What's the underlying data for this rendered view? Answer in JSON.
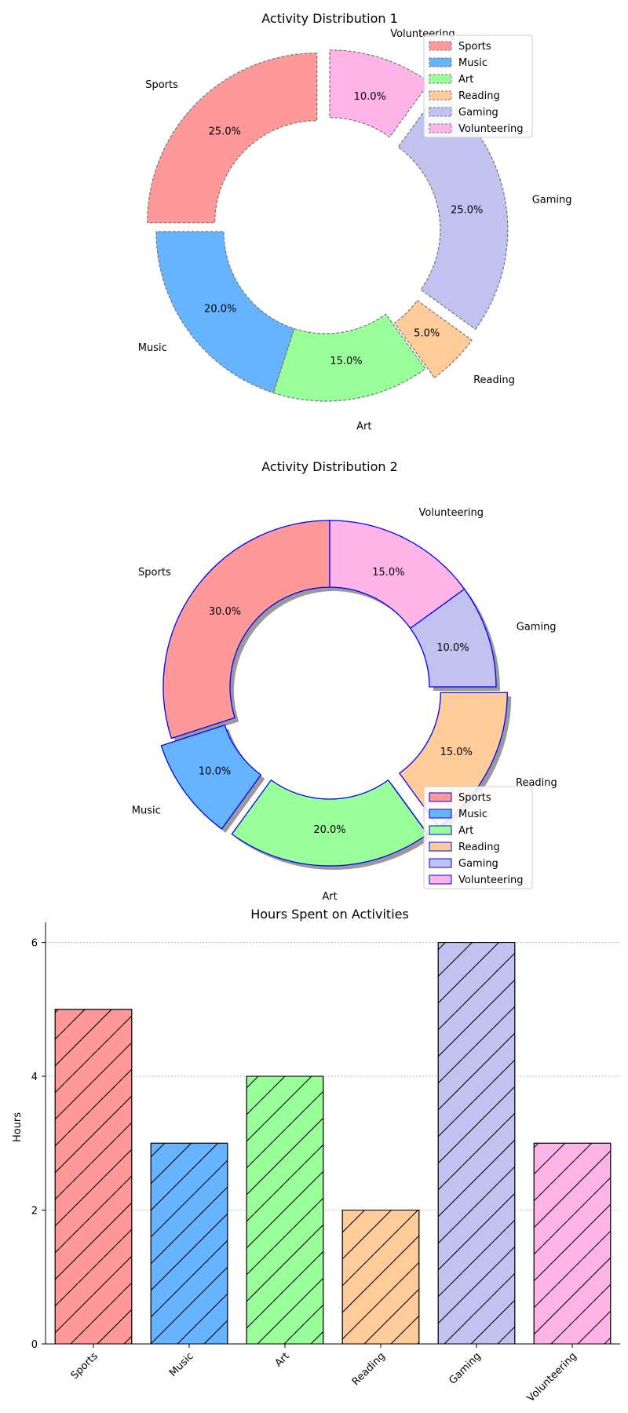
{
  "chart_data": [
    {
      "type": "pie",
      "style": "donut",
      "title": "Activity Distribution 1",
      "categories": [
        "Sports",
        "Music",
        "Art",
        "Reading",
        "Gaming",
        "Volunteering"
      ],
      "values": [
        25,
        20,
        15,
        5,
        25,
        10
      ],
      "percent_labels": [
        "25.0%",
        "20.0%",
        "15.0%",
        "5.0%",
        "25.0%",
        "10.0%"
      ],
      "colors": [
        "#ff9999",
        "#66b3ff",
        "#99ff99",
        "#ffcc99",
        "#c2c2f0",
        "#ffb3e6"
      ],
      "edge_color": "#777777",
      "edge_style": "dashed",
      "exploded": [
        "Sports",
        "Reading",
        "Gaming",
        "Volunteering"
      ],
      "legend": {
        "location": "top-right",
        "entries": [
          "Sports",
          "Music",
          "Art",
          "Reading",
          "Gaming",
          "Volunteering"
        ]
      }
    },
    {
      "type": "pie",
      "style": "donut",
      "title": "Activity Distribution 2",
      "categories": [
        "Sports",
        "Music",
        "Art",
        "Reading",
        "Gaming",
        "Volunteering"
      ],
      "values": [
        30,
        10,
        20,
        15,
        10,
        15
      ],
      "percent_labels": [
        "30.0%",
        "10.0%",
        "20.0%",
        "15.0%",
        "10.0%",
        "15.0%"
      ],
      "colors": [
        "#ff9999",
        "#66b3ff",
        "#99ff99",
        "#ffcc99",
        "#c2c2f0",
        "#ffb3e6"
      ],
      "edge_color": "#0000ff",
      "shadow": true,
      "exploded": [
        "Music",
        "Art",
        "Reading"
      ],
      "legend": {
        "location": "bottom-right",
        "entries": [
          "Sports",
          "Music",
          "Art",
          "Reading",
          "Gaming",
          "Volunteering"
        ]
      }
    },
    {
      "type": "bar",
      "title": "Hours Spent on Activities",
      "categories": [
        "Sports",
        "Music",
        "Art",
        "Reading",
        "Gaming",
        "Volunteering"
      ],
      "values": [
        5,
        3,
        4,
        2,
        6,
        3
      ],
      "colors": [
        "#ff9999",
        "#66b3ff",
        "#99ff99",
        "#ffcc99",
        "#c2c2f0",
        "#ffb3e6"
      ],
      "hatch": "diagonal",
      "xlabel": "",
      "ylabel": "Hours",
      "ylim": [
        0,
        6.3
      ],
      "yticks": [
        0,
        2,
        4,
        6
      ],
      "grid": "y-dotted"
    }
  ]
}
